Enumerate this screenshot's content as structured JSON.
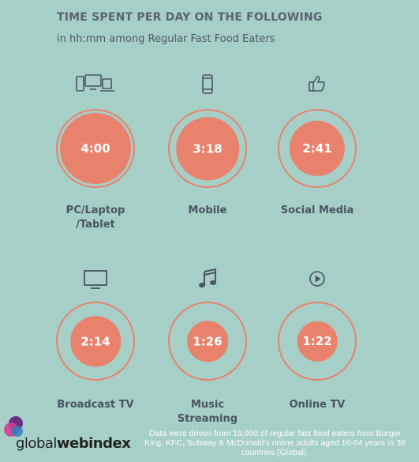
{
  "header": {
    "title": "TIME SPENT PER DAY ON THE FOLLOWING",
    "subtitle": "in hh:mm among Regular Fast Food Eaters"
  },
  "colors": {
    "background": "#a5cfc7",
    "accent": "#e8826d",
    "text": "#4a5462"
  },
  "chart_data": {
    "type": "bubble",
    "title": "TIME SPENT PER DAY ON THE FOLLOWING",
    "subtitle": "in hh:mm among Regular Fast Food Eaters",
    "unit": "hh:mm",
    "items": [
      {
        "category": "PC/Laptop /Tablet",
        "label_lines": [
          "PC/Laptop",
          "/Tablet"
        ],
        "value": "4:00",
        "minutes": 240,
        "icon": "devices-icon"
      },
      {
        "category": "Mobile",
        "label_lines": [
          "Mobile"
        ],
        "value": "3:18",
        "minutes": 198,
        "icon": "mobile-phone-icon"
      },
      {
        "category": "Social Media",
        "label_lines": [
          "Social Media"
        ],
        "value": "2:41",
        "minutes": 161,
        "icon": "thumbs-up-icon"
      },
      {
        "category": "Broadcast TV",
        "label_lines": [
          "Broadcast TV"
        ],
        "value": "2:14",
        "minutes": 134,
        "icon": "tv-icon"
      },
      {
        "category": "Music Streaming",
        "label_lines": [
          "Music",
          "Streaming"
        ],
        "value": "1:26",
        "minutes": 86,
        "icon": "music-note-icon"
      },
      {
        "category": "Online TV",
        "label_lines": [
          "Online TV"
        ],
        "value": "1:22",
        "minutes": 82,
        "icon": "play-icon"
      }
    ]
  },
  "footer": {
    "brand_regular": "global",
    "brand_bold": "webindex",
    "note": "Data were driven from 19,950 of regular fast food eaters from Burger King, KFC, Subway & McDonald's online adults aged 16-64 years in 36 countries (Global)."
  }
}
